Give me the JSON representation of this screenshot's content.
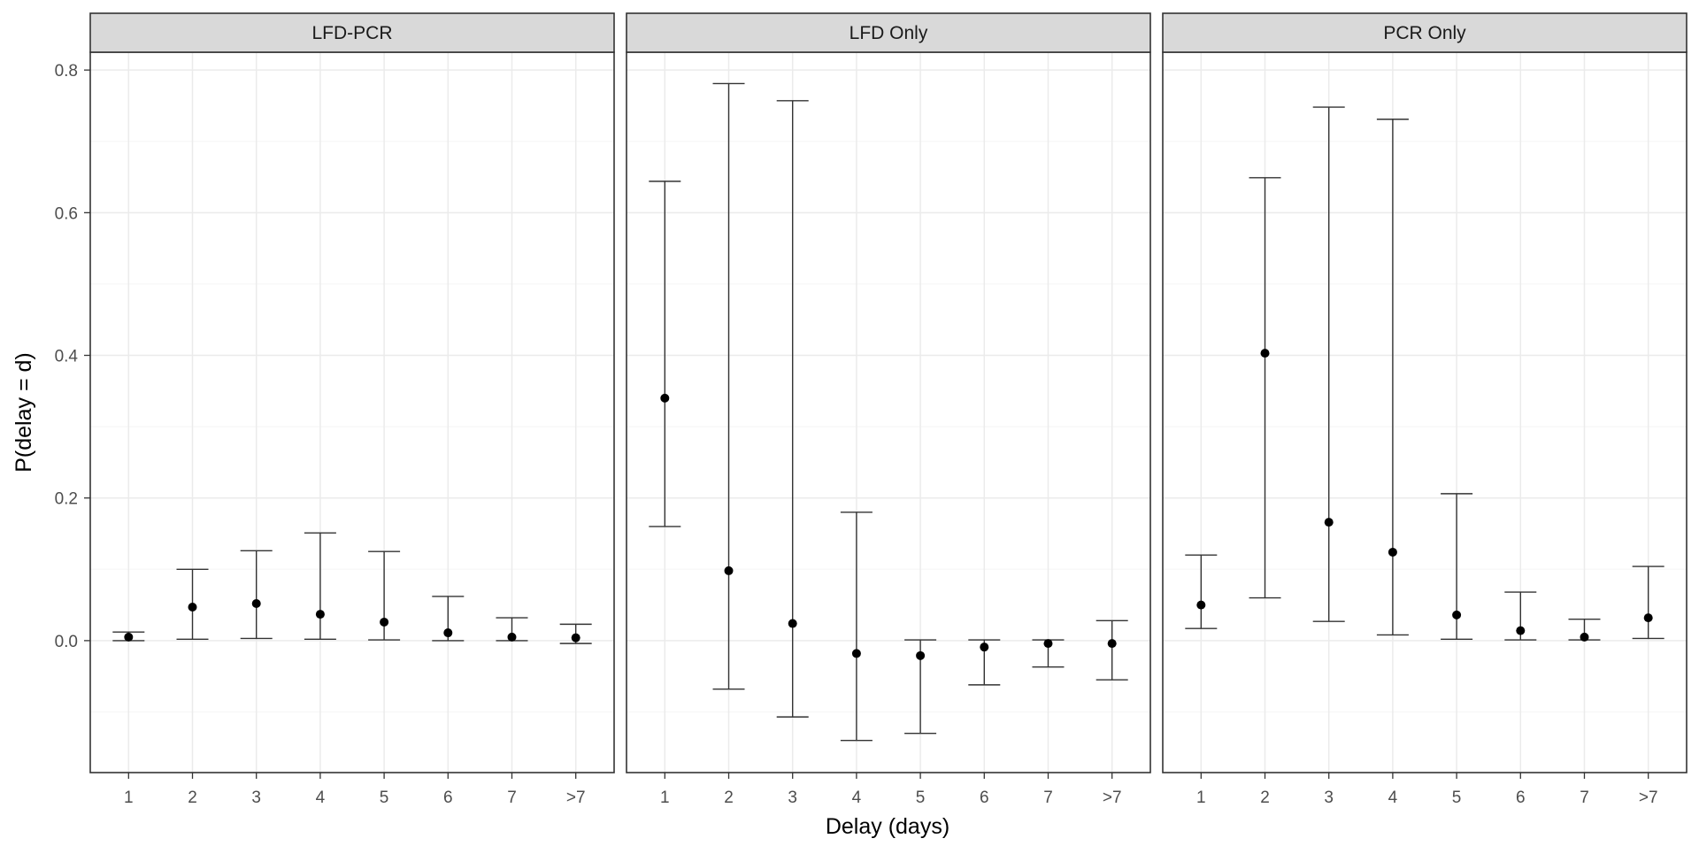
{
  "chart_data": {
    "type": "scatter",
    "subtype": "point-with-errorbars, faceted",
    "x_axis_label": "Delay (days)",
    "y_axis_label": "P(delay = d)",
    "categories": [
      "1",
      "2",
      "3",
      "4",
      "5",
      "6",
      "7",
      ">7"
    ],
    "y_ticks": [
      "0.0",
      "0.2",
      "0.4",
      "0.6",
      "0.8"
    ],
    "y_tick_values": [
      0.0,
      0.2,
      0.4,
      0.6,
      0.8
    ],
    "ylim": [
      -0.185,
      0.825
    ],
    "grid": true,
    "legend": "none",
    "colors": {
      "point": "#000000",
      "errorbar": "#333333",
      "strip_fill": "#d9d9d9",
      "panel_border": "#333333",
      "grid_major": "#ebebeb",
      "grid_minor": "#f5f5f5"
    },
    "panels": [
      {
        "title": "LFD-PCR",
        "values": [
          0.005,
          0.047,
          0.052,
          0.037,
          0.026,
          0.011,
          0.005,
          0.004
        ],
        "lower": [
          0.0,
          0.002,
          0.003,
          0.002,
          0.001,
          0.0,
          0.0,
          -0.004
        ],
        "upper": [
          0.012,
          0.1,
          0.126,
          0.151,
          0.125,
          0.062,
          0.032,
          0.023
        ]
      },
      {
        "title": "LFD Only",
        "values": [
          0.34,
          0.098,
          0.024,
          -0.018,
          -0.021,
          -0.009,
          -0.004,
          -0.004
        ],
        "lower": [
          0.16,
          -0.068,
          -0.107,
          -0.14,
          -0.13,
          -0.062,
          -0.037,
          -0.055
        ],
        "upper": [
          0.644,
          0.781,
          0.757,
          0.18,
          0.001,
          0.001,
          0.001,
          0.028
        ]
      },
      {
        "title": "PCR Only",
        "values": [
          0.05,
          0.403,
          0.166,
          0.124,
          0.036,
          0.014,
          0.005,
          0.032
        ],
        "lower": [
          0.017,
          0.06,
          0.027,
          0.008,
          0.002,
          0.001,
          0.001,
          0.003
        ],
        "upper": [
          0.12,
          0.649,
          0.748,
          0.731,
          0.206,
          0.068,
          0.03,
          0.104
        ]
      }
    ]
  }
}
